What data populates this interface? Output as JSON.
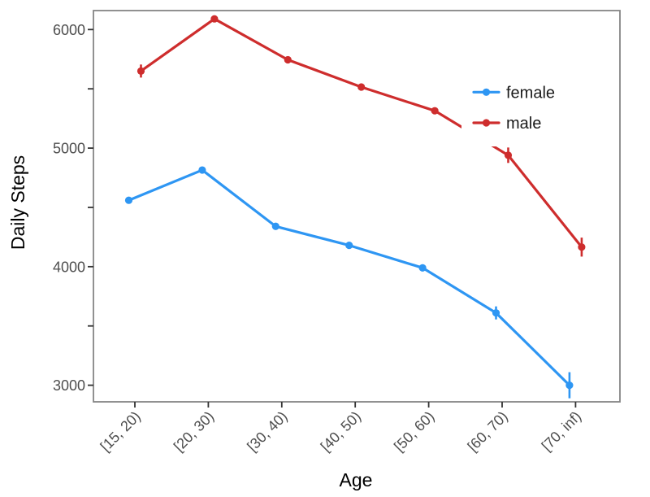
{
  "chart_data": {
    "type": "line",
    "title": "",
    "xlabel": "Age",
    "ylabel": "Daily Steps",
    "categories": [
      "[15, 20)",
      "[20, 30)",
      "[30, 40)",
      "[40, 50)",
      "[50, 60)",
      "[60, 70)",
      "[70, inf)"
    ],
    "series": [
      {
        "name": "female",
        "color": "#2E96F3",
        "values": [
          4560,
          4815,
          4340,
          4180,
          3990,
          3610,
          3000
        ],
        "errors": [
          25,
          25,
          25,
          25,
          30,
          55,
          110
        ]
      },
      {
        "name": "male",
        "color": "#CE2D2D",
        "values": [
          5650,
          6090,
          5745,
          5515,
          5315,
          4940,
          4165
        ],
        "errors": [
          55,
          25,
          25,
          25,
          25,
          65,
          80
        ]
      }
    ],
    "y_axis": {
      "title": "Daily Steps",
      "major_ticks": [
        3000,
        4000,
        5000,
        6000
      ],
      "major_tick_labels": [
        "3000",
        "4000",
        "5000",
        "6000"
      ],
      "minor_ticks": [
        3500,
        4500,
        5500
      ],
      "range": [
        2860,
        6160
      ]
    },
    "x_axis": {
      "title": "Age",
      "tick_label_angle_deg": -45
    },
    "legend": {
      "position": "inside-right",
      "items": [
        "female",
        "male"
      ]
    },
    "grid": false,
    "error_bars": true,
    "style": {
      "background": "#ffffff",
      "panel_border": "#858585",
      "tick_mark_color": "#333333",
      "tick_label_color": "#4e4e4e",
      "axis_title_color": "#000000",
      "legend_text_color": "#1a1a1a"
    }
  }
}
